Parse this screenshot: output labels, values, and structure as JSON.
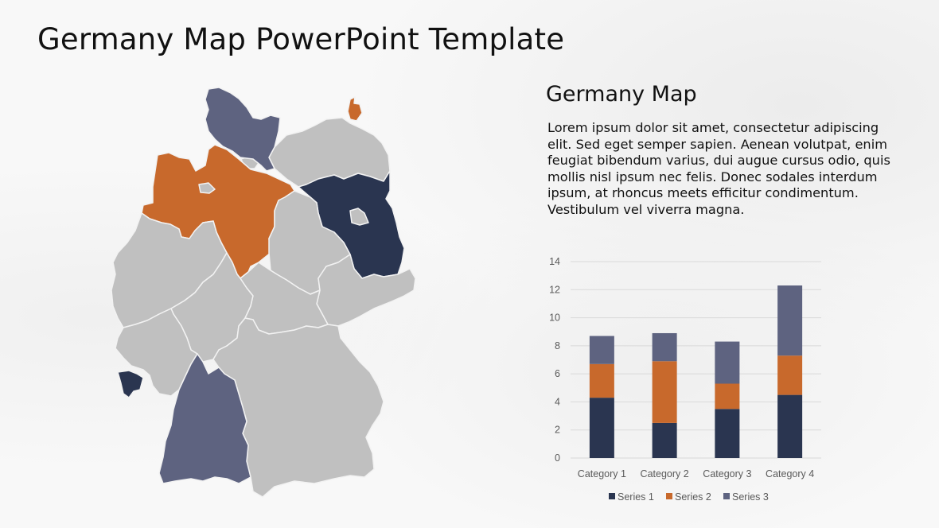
{
  "slide": {
    "title": "Germany Map PowerPoint Template",
    "subtitle": "Germany Map",
    "body": "Lorem ipsum dolor sit amet, consectetur adipiscing elit. Sed eget semper sapien. Aenean volutpat, enim feugiat bibendum varius, dui augue cursus odio, quis mollis nisl ipsum nec felis. Donec sodales interdum ipsum, at rhoncus meets efficitur condimentum. Vestibulum vel viverra magna."
  },
  "colors": {
    "series1": "#2a3550",
    "series2": "#c8692c",
    "series3": "#5e6380",
    "map_default": "#c0c0c0",
    "map_border": "#f2f2f2"
  },
  "map": {
    "highlighted_regions": [
      {
        "region": "schleswig-holstein",
        "color": "#5e6380"
      },
      {
        "region": "lower-saxony",
        "color": "#c8692c"
      },
      {
        "region": "ruegen-island",
        "color": "#c8692c"
      },
      {
        "region": "brandenburg",
        "color": "#2a3550"
      },
      {
        "region": "saarland",
        "color": "#2a3550"
      },
      {
        "region": "baden-wuerttemberg",
        "color": "#5e6380"
      }
    ]
  },
  "chart_data": {
    "type": "bar",
    "stacked": true,
    "title": "",
    "xlabel": "",
    "ylabel": "",
    "categories": [
      "Category 1",
      "Category 2",
      "Category 3",
      "Category 4"
    ],
    "series": [
      {
        "name": "Series 1",
        "values": [
          4.3,
          2.5,
          3.5,
          4.5
        ],
        "color": "#2a3550"
      },
      {
        "name": "Series 2",
        "values": [
          2.4,
          4.4,
          1.8,
          2.8
        ],
        "color": "#c8692c"
      },
      {
        "name": "Series 3",
        "values": [
          2.0,
          2.0,
          3.0,
          5.0
        ],
        "color": "#5e6380"
      }
    ],
    "ylim": [
      0,
      14
    ],
    "yticks": [
      "0",
      "2",
      "4",
      "6",
      "8",
      "10",
      "12",
      "14"
    ],
    "grid": true,
    "legend_position": "bottom"
  }
}
